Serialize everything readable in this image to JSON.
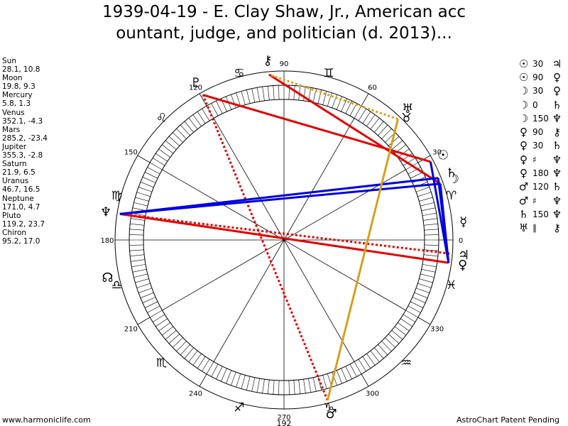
{
  "title": {
    "line1": "1939-04-19 - E. Clay Shaw, Jr., American acc",
    "line2": "ountant, judge, and politician (d. 2013)..."
  },
  "planets": [
    {
      "name": "Sun",
      "coords": "28.1, 10.8"
    },
    {
      "name": "Moon",
      "coords": "19.8, 9.3"
    },
    {
      "name": "Mercury",
      "coords": "5.8, 1.3"
    },
    {
      "name": "Venus",
      "coords": "352.1, -4.3"
    },
    {
      "name": "Mars",
      "coords": "285.2, -23.4"
    },
    {
      "name": "Jupiter",
      "coords": "355.3, -2.8"
    },
    {
      "name": "Saturn",
      "coords": "21.9, 6.5"
    },
    {
      "name": "Uranus",
      "coords": "46.7, 16.5"
    },
    {
      "name": "Neptune",
      "coords": "171.0, 4.7"
    },
    {
      "name": "Pluto",
      "coords": "119.2, 23.7"
    },
    {
      "name": "Chiron",
      "coords": "95.2, 17.0"
    }
  ],
  "aspects": [
    {
      "p1": "☉",
      "angle": "30",
      "p2": "♃",
      "color": "#000000"
    },
    {
      "p1": "☉",
      "angle": "90",
      "p2": "♀",
      "color": "#000000"
    },
    {
      "p1": "☽",
      "angle": "30",
      "p2": "♀",
      "color": "#000000"
    },
    {
      "p1": "☽",
      "angle": "0",
      "p2": "♄",
      "color": "#000000"
    },
    {
      "p1": "☽",
      "angle": "150",
      "p2": "♆",
      "color": "#000000"
    },
    {
      "p1": "♀",
      "angle": "90",
      "p2": "⚷",
      "color": "#000000"
    },
    {
      "p1": "♀",
      "angle": "30",
      "p2": "♄",
      "color": "#000000"
    },
    {
      "p1": "♀",
      "angle": "♯",
      "p2": "♆",
      "color": "#000000"
    },
    {
      "p1": "♀",
      "angle": "180",
      "p2": "♆",
      "color": "#000000"
    },
    {
      "p1": "♂",
      "angle": "120",
      "p2": "♄",
      "color": "#000000"
    },
    {
      "p1": "♂",
      "angle": "♯",
      "p2": "♆",
      "color": "#000000"
    },
    {
      "p1": "♄",
      "angle": "150",
      "p2": "♆",
      "color": "#000000"
    },
    {
      "p1": "♅",
      "angle": "∥",
      "p2": "⚷",
      "color": "#000000"
    }
  ],
  "wheel": {
    "degree_labels": [
      "0",
      "30",
      "60",
      "90",
      "120",
      "150",
      "180",
      "210",
      "240",
      "270",
      "300",
      "330"
    ],
    "bottom_value": "192",
    "signs": [
      "♈",
      "♉",
      "♊",
      "♋",
      "♌",
      "♍",
      "♎",
      "♏",
      "♐",
      "♑",
      "♒",
      "♓"
    ],
    "sign_glyphs_shown": [
      "♓",
      "♈",
      "♉",
      "♊",
      "♋",
      "♌",
      "♍",
      "♎",
      "♏",
      "♐",
      "♑",
      "♒"
    ]
  },
  "chart_planets": [
    {
      "id": "sun",
      "glyph": "☉",
      "lon": 28.1
    },
    {
      "id": "moon",
      "glyph": "☽",
      "lon": 19.8
    },
    {
      "id": "mercury",
      "glyph": "☿",
      "lon": 5.8
    },
    {
      "id": "venus",
      "glyph": "♀",
      "lon": 352.1
    },
    {
      "id": "mars",
      "glyph": "♂",
      "lon": 285.2
    },
    {
      "id": "jupiter",
      "glyph": "♃",
      "lon": 355.3
    },
    {
      "id": "saturn",
      "glyph": "♄",
      "lon": 21.9
    },
    {
      "id": "uranus",
      "glyph": "♅",
      "lon": 46.7
    },
    {
      "id": "neptune",
      "glyph": "♆",
      "lon": 171.0
    },
    {
      "id": "pluto",
      "glyph": "♇",
      "lon": 119.2
    },
    {
      "id": "chiron",
      "glyph": "⚷",
      "lon": 95.2
    },
    {
      "id": "node",
      "glyph": "☊",
      "lon": 192.0
    }
  ],
  "chart_lines": [
    {
      "a": 28.1,
      "b": 119.2,
      "color": "#e00000",
      "style": "solid"
    },
    {
      "a": 19.8,
      "b": 95.2,
      "color": "#e00000",
      "style": "solid"
    },
    {
      "a": 352.1,
      "b": 171.0,
      "color": "#e00000",
      "style": "solid"
    },
    {
      "a": 355.3,
      "b": 171.0,
      "color": "#e00000",
      "style": "dotted"
    },
    {
      "a": 285.2,
      "b": 119.2,
      "color": "#e00000",
      "style": "dotted"
    },
    {
      "a": 28.1,
      "b": 352.1,
      "color": "#0000dd",
      "style": "solid"
    },
    {
      "a": 19.8,
      "b": 352.1,
      "color": "#0000dd",
      "style": "solid"
    },
    {
      "a": 19.8,
      "b": 171.0,
      "color": "#0000dd",
      "style": "solid"
    },
    {
      "a": 21.9,
      "b": 171.0,
      "color": "#0000dd",
      "style": "solid"
    },
    {
      "a": 21.9,
      "b": 352.1,
      "color": "#0000dd",
      "style": "solid"
    },
    {
      "a": 285.2,
      "b": 46.7,
      "color": "#d4a020",
      "style": "solid"
    },
    {
      "a": 46.7,
      "b": 95.2,
      "color": "#d4a020",
      "style": "dotted"
    }
  ],
  "footer": {
    "left": "www.harmoniclife.com",
    "right": "AstroChart Patent Pending"
  }
}
